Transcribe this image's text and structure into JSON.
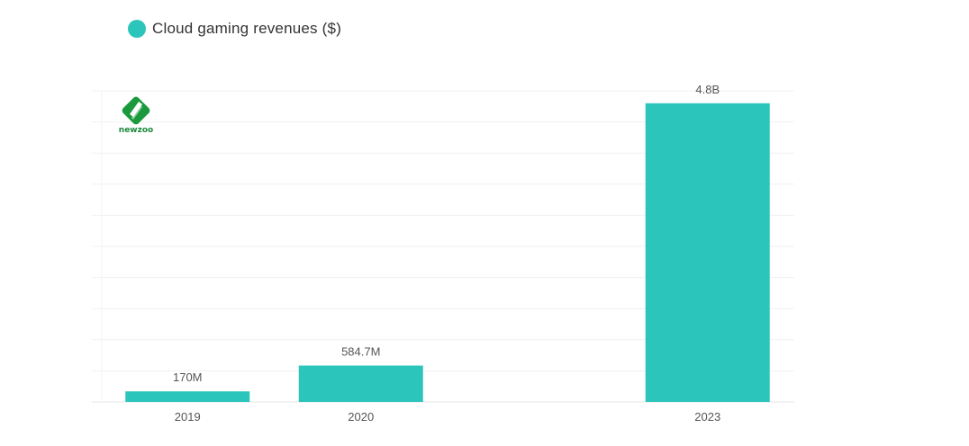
{
  "legend": {
    "label": "Cloud gaming revenues ($)",
    "color": "#2cc5bb"
  },
  "logo": {
    "text": "newzoo",
    "icon": "newzoo-logo-icon",
    "color": "#1a9a3c"
  },
  "chart_data": {
    "type": "bar",
    "categories": [
      "2019",
      "2020",
      "2023"
    ],
    "series": [
      {
        "name": "Cloud gaming revenues ($)",
        "values": [
          0.17,
          0.5847,
          4.8
        ],
        "labels": [
          "170M",
          "584.7M",
          "4.8B"
        ],
        "color": "#2cc5bb"
      }
    ],
    "x_positions": [
      0,
      1,
      3
    ],
    "ylim": [
      0,
      5
    ],
    "grid": true,
    "legend_position": "top-left"
  }
}
